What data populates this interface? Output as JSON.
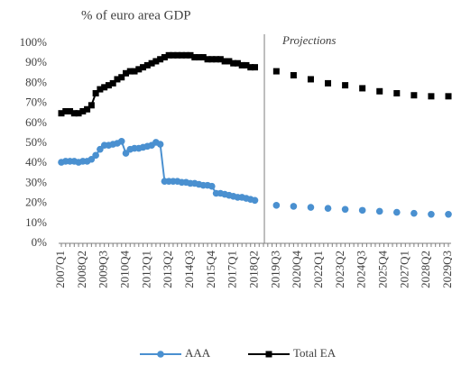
{
  "chart_data": {
    "type": "line",
    "subtitle": "% of euro area GDP",
    "annotation": "Projections",
    "categories": [
      "2007Q1",
      null,
      null,
      null,
      null,
      "2008Q2",
      null,
      null,
      null,
      null,
      "2009Q3",
      null,
      null,
      null,
      null,
      "2010Q4",
      null,
      null,
      null,
      null,
      "2012Q1",
      null,
      null,
      null,
      null,
      "2013Q2",
      null,
      null,
      null,
      null,
      "2014Q3",
      null,
      null,
      null,
      null,
      "2015Q4",
      null,
      null,
      null,
      null,
      "2017Q1",
      null,
      null,
      null,
      null,
      "2018Q2",
      null,
      null,
      null,
      null,
      "2019Q3",
      null,
      null,
      null,
      null,
      "2020Q4",
      null,
      null,
      null,
      null,
      "2022Q1",
      null,
      null,
      null,
      null,
      "2023Q2",
      null,
      null,
      null,
      null,
      "2024Q3",
      null,
      null,
      null,
      null,
      "2025Q4",
      null,
      null,
      null,
      null,
      "2027Q1",
      null,
      null,
      null,
      null,
      "2028Q2",
      null,
      null,
      null,
      null,
      "2029Q3"
    ],
    "series": [
      {
        "name": "AAA",
        "color": "#4a90d0",
        "marker": "circle",
        "values": [
          40.5,
          41,
          41,
          41,
          40.5,
          41,
          41,
          42,
          44,
          47,
          49,
          49,
          49.5,
          50,
          51,
          45,
          47,
          47.5,
          47.5,
          48,
          48.5,
          49,
          50.5,
          49.5,
          31,
          31,
          31,
          31,
          30.5,
          30.5,
          30,
          30,
          29.5,
          29,
          29,
          28.5,
          25,
          25,
          24.5,
          24,
          23.5,
          23,
          23,
          22.5,
          22,
          21.5,
          null,
          null,
          null,
          null,
          19,
          null,
          null,
          null,
          18.5,
          null,
          null,
          null,
          18,
          null,
          null,
          null,
          17.5,
          null,
          null,
          null,
          17,
          null,
          null,
          null,
          16.5,
          null,
          null,
          null,
          16,
          null,
          null,
          null,
          15.5,
          null,
          null,
          null,
          15,
          null,
          null,
          null,
          14.5,
          null,
          null,
          null,
          14.5
        ]
      },
      {
        "name": "Total EA",
        "color": "#000000",
        "marker": "square",
        "values": [
          65,
          66,
          66,
          65,
          65,
          66,
          67,
          69,
          75,
          77,
          78,
          79,
          80,
          82,
          83,
          85,
          86,
          86,
          87,
          88,
          89,
          90,
          91,
          92,
          93,
          94,
          94,
          94,
          94,
          94,
          94,
          93,
          93,
          93,
          92,
          92,
          92,
          92,
          91,
          91,
          90,
          90,
          89,
          89,
          88,
          88,
          null,
          null,
          null,
          null,
          86,
          null,
          null,
          null,
          84,
          null,
          null,
          null,
          82,
          null,
          null,
          null,
          80,
          null,
          null,
          null,
          79,
          null,
          null,
          null,
          77.5,
          null,
          null,
          null,
          76,
          null,
          null,
          null,
          75,
          null,
          null,
          null,
          74,
          null,
          null,
          null,
          73.5,
          null,
          null,
          null,
          73.5
        ]
      }
    ],
    "ylim": [
      0,
      100
    ],
    "yticks": [
      {
        "value": 0,
        "label": "0%"
      },
      {
        "value": 10,
        "label": "10%"
      },
      {
        "value": 20,
        "label": "20%"
      },
      {
        "value": 30,
        "label": "30%"
      },
      {
        "value": 40,
        "label": "40%"
      },
      {
        "value": 50,
        "label": "50%"
      },
      {
        "value": 60,
        "label": "60%"
      },
      {
        "value": 70,
        "label": "70%"
      },
      {
        "value": 80,
        "label": "80%"
      },
      {
        "value": 90,
        "label": "90%"
      },
      {
        "value": 100,
        "label": "100%"
      }
    ],
    "legend": "bottom"
  }
}
